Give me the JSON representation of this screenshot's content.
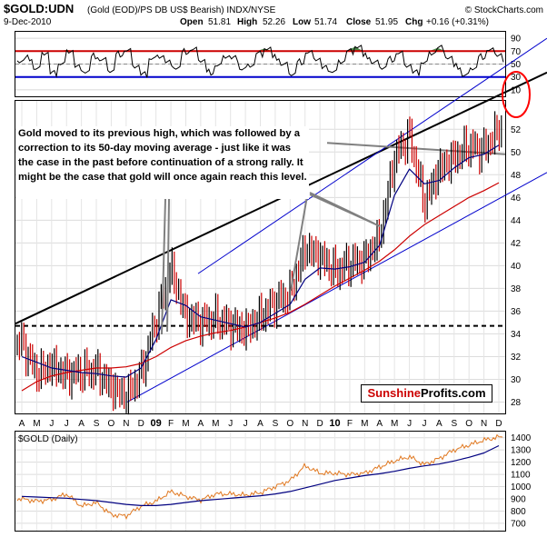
{
  "header": {
    "symbol": "$GOLD:UDN",
    "description": "(Gold (EOD)/PS DB US$ Bearish) INDX/NYSE",
    "source": "© StockCharts.com",
    "date": "9-Dec-2010",
    "open_label": "Open",
    "open": "51.81",
    "high_label": "High",
    "high": "52.26",
    "low_label": "Low",
    "low": "51.74",
    "close_label": "Close",
    "close": "51.95",
    "chg_label": "Chg",
    "chg": "+0.16 (+0.31%)"
  },
  "annotation": "Gold moved to its previous high, which was followed by a correction to its 50-day moving average - just like it was the case in the past before continuation of a strong rally. It might be the case that gold will once again reach this level.",
  "brand": {
    "part1": "Sunshine",
    "part2": "Profits.com"
  },
  "colors": {
    "price_up": "#000000",
    "price_down": "#cc0000",
    "ma50": "#000080",
    "ma200": "#cc0000",
    "trend": "#0000cc",
    "gold": "#e07820",
    "rsi_fill": "#4a8a4a",
    "circle": "#ff0000"
  },
  "chart_data": [
    {
      "type": "line",
      "panel": "rsi",
      "yticks": [
        10,
        30,
        50,
        70,
        90
      ],
      "ylim": [
        0,
        100
      ],
      "levels": [
        30,
        70
      ],
      "series": [
        {
          "values": [
            55,
            60,
            42,
            68,
            35,
            50,
            72,
            45,
            38,
            62,
            55,
            40,
            66,
            70,
            48,
            33,
            58,
            64,
            52,
            44,
            69,
            71,
            56,
            38,
            47,
            63,
            58,
            42,
            50,
            66,
            74,
            60,
            48,
            35,
            54,
            67,
            59,
            43,
            38,
            56,
            70,
            77,
            62,
            51,
            45,
            58,
            66,
            49,
            36,
            52,
            69,
            75,
            60,
            46,
            31,
            44,
            62,
            71,
            66,
            53
          ]
        }
      ]
    },
    {
      "type": "line",
      "panel": "ratio",
      "title": "",
      "xticks": [
        "A",
        "M",
        "J",
        "J",
        "A",
        "S",
        "O",
        "N",
        "D",
        "09",
        "F",
        "M",
        "A",
        "M",
        "J",
        "J",
        "A",
        "S",
        "O",
        "N",
        "D",
        "10",
        "F",
        "M",
        "A",
        "M",
        "J",
        "J",
        "A",
        "S",
        "O",
        "N",
        "D"
      ],
      "yticks": [
        28,
        30,
        32,
        34,
        36,
        38,
        40,
        42,
        44,
        46,
        48,
        50,
        52
      ],
      "ylim": [
        27,
        54.5
      ],
      "reference_level": 34.7,
      "x": [
        "2008-04",
        "2008-05",
        "2008-06",
        "2008-07",
        "2008-08",
        "2008-09",
        "2008-10",
        "2008-11",
        "2008-12",
        "2009-01",
        "2009-02",
        "2009-03",
        "2009-04",
        "2009-05",
        "2009-06",
        "2009-07",
        "2009-08",
        "2009-09",
        "2009-10",
        "2009-11",
        "2009-12",
        "2010-01",
        "2010-02",
        "2010-03",
        "2010-04",
        "2010-05",
        "2010-06",
        "2010-07",
        "2010-08",
        "2010-09",
        "2010-10",
        "2010-11",
        "2010-12"
      ],
      "series": [
        {
          "values": [
            33.2,
            30.5,
            31.2,
            30.4,
            30.6,
            30.8,
            29.3,
            28.5,
            30.5,
            35.2,
            39.8,
            35.5,
            35.0,
            35.3,
            34.8,
            34.3,
            35.5,
            36.8,
            37.5,
            41.5,
            40.8,
            39.5,
            40.2,
            40.5,
            42.5,
            49.5,
            51.5,
            45.5,
            48.5,
            49.5,
            50.5,
            50.2,
            52.0
          ]
        },
        {
          "values": [
            32.0,
            31.5,
            31.0,
            30.8,
            30.6,
            30.5,
            30.3,
            30.2,
            31.0,
            33.5,
            37.0,
            36.5,
            35.5,
            35.2,
            34.9,
            34.6,
            35.0,
            35.8,
            36.6,
            38.8,
            39.8,
            39.7,
            39.9,
            40.3,
            41.8,
            46.2,
            48.5,
            47.2,
            47.5,
            48.6,
            49.5,
            49.8,
            50.6
          ]
        },
        {
          "values": [
            29.0,
            29.8,
            30.3,
            30.6,
            30.8,
            31.0,
            31.0,
            31.1,
            31.4,
            32.0,
            32.8,
            33.4,
            33.8,
            34.1,
            34.3,
            34.6,
            35.0,
            35.4,
            35.9,
            36.6,
            37.4,
            38.2,
            38.9,
            39.6,
            40.4,
            41.4,
            42.6,
            43.6,
            44.4,
            45.2,
            46.0,
            46.6,
            47.3
          ]
        }
      ]
    },
    {
      "type": "line",
      "panel": "gold",
      "title": "$GOLD (Daily)",
      "yticks": [
        700,
        800,
        900,
        1000,
        1100,
        1200,
        1300,
        1400
      ],
      "ylim": [
        640,
        1450
      ],
      "x": [
        "2008-04",
        "2008-05",
        "2008-06",
        "2008-07",
        "2008-08",
        "2008-09",
        "2008-10",
        "2008-11",
        "2008-12",
        "2009-01",
        "2009-02",
        "2009-03",
        "2009-04",
        "2009-05",
        "2009-06",
        "2009-07",
        "2009-08",
        "2009-09",
        "2009-10",
        "2009-11",
        "2009-12",
        "2010-01",
        "2010-02",
        "2010-03",
        "2010-04",
        "2010-05",
        "2010-06",
        "2010-07",
        "2010-08",
        "2010-09",
        "2010-10",
        "2010-11",
        "2010-12"
      ],
      "series": [
        {
          "values": [
            900,
            880,
            895,
            940,
            840,
            870,
            770,
            760,
            840,
            880,
            960,
            920,
            890,
            940,
            940,
            930,
            950,
            1000,
            1050,
            1170,
            1110,
            1110,
            1100,
            1110,
            1160,
            1210,
            1245,
            1180,
            1230,
            1300,
            1340,
            1380,
            1405
          ]
        },
        {
          "values": [
            920,
            915,
            910,
            905,
            895,
            885,
            870,
            855,
            845,
            845,
            855,
            870,
            885,
            895,
            905,
            915,
            925,
            940,
            960,
            990,
            1020,
            1050,
            1070,
            1090,
            1105,
            1125,
            1150,
            1170,
            1185,
            1210,
            1240,
            1275,
            1335
          ]
        }
      ]
    }
  ]
}
